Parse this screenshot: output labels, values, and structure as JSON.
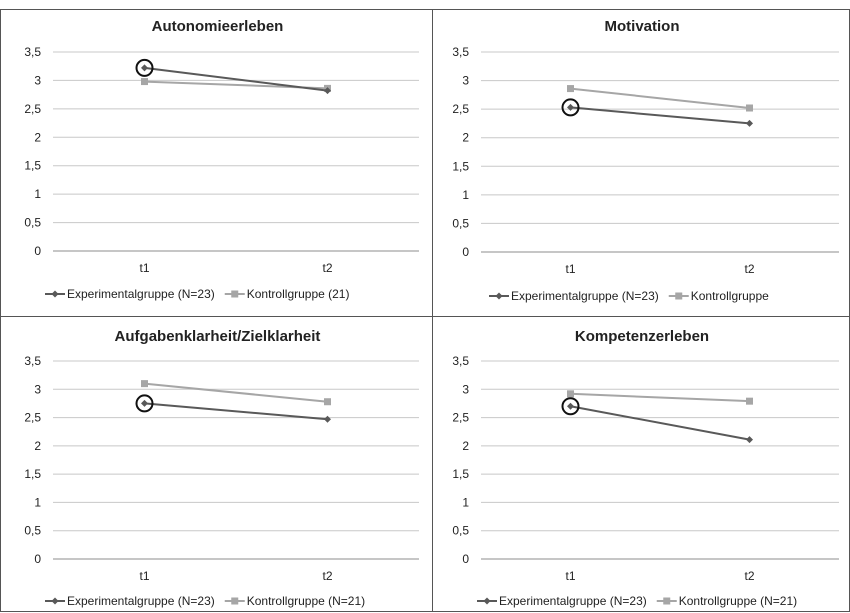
{
  "charts": [
    {
      "type": "line",
      "title": "Autonomieerleben",
      "categories": [
        "t1",
        "t2"
      ],
      "y_ticks": [
        "0",
        "0,5",
        "1",
        "1,5",
        "2",
        "2,5",
        "3",
        "3,5"
      ],
      "ylim": [
        0,
        3.5
      ],
      "grid": true,
      "legend_position": "bottom",
      "circled_point": {
        "series": 0,
        "index": 0
      },
      "series": [
        {
          "name": "Experimentalgruppe (N=23)",
          "values": [
            3.22,
            2.82
          ],
          "color": "#595959",
          "marker": "diamond"
        },
        {
          "name": "Kontrollgruppe (21)",
          "values": [
            2.98,
            2.86
          ],
          "color": "#a6a6a6",
          "marker": "square"
        }
      ]
    },
    {
      "type": "line",
      "title": "Motivation",
      "categories": [
        "t1",
        "t2"
      ],
      "y_ticks": [
        "0",
        "0,5",
        "1",
        "1,5",
        "2",
        "2,5",
        "3",
        "3,5"
      ],
      "ylim": [
        0,
        3.5
      ],
      "grid": true,
      "legend_position": "bottom",
      "circled_point": {
        "series": 0,
        "index": 0
      },
      "series": [
        {
          "name": "Experimentalgruppe (N=23)",
          "values": [
            2.53,
            2.25
          ],
          "color": "#595959",
          "marker": "diamond"
        },
        {
          "name": "Kontrollgruppe",
          "values": [
            2.86,
            2.52
          ],
          "color": "#a6a6a6",
          "marker": "square"
        }
      ]
    },
    {
      "type": "line",
      "title": "Aufgabenklarheit/Zielklarheit",
      "categories": [
        "t1",
        "t2"
      ],
      "y_ticks": [
        "0",
        "0,5",
        "1",
        "1,5",
        "2",
        "2,5",
        "3",
        "3,5"
      ],
      "ylim": [
        0,
        3.5
      ],
      "grid": true,
      "legend_position": "bottom",
      "circled_point": {
        "series": 0,
        "index": 0
      },
      "series": [
        {
          "name": "Experimentalgruppe (N=23)",
          "values": [
            2.75,
            2.47
          ],
          "color": "#595959",
          "marker": "diamond"
        },
        {
          "name": "Kontrollgruppe (N=21)",
          "values": [
            3.1,
            2.78
          ],
          "color": "#a6a6a6",
          "marker": "square"
        }
      ]
    },
    {
      "type": "line",
      "title": "Kompetenzerleben",
      "categories": [
        "t1",
        "t2"
      ],
      "y_ticks": [
        "0",
        "0,5",
        "1",
        "1,5",
        "2",
        "2,5",
        "3",
        "3,5"
      ],
      "ylim": [
        0,
        3.5
      ],
      "grid": true,
      "legend_position": "bottom",
      "circled_point": {
        "series": 0,
        "index": 0
      },
      "series": [
        {
          "name": "Experimentalgruppe (N=23)",
          "values": [
            2.7,
            2.11
          ],
          "color": "#595959",
          "marker": "diamond"
        },
        {
          "name": "Kontrollgruppe (N=21)",
          "values": [
            2.92,
            2.79
          ],
          "color": "#a6a6a6",
          "marker": "square"
        }
      ]
    }
  ]
}
